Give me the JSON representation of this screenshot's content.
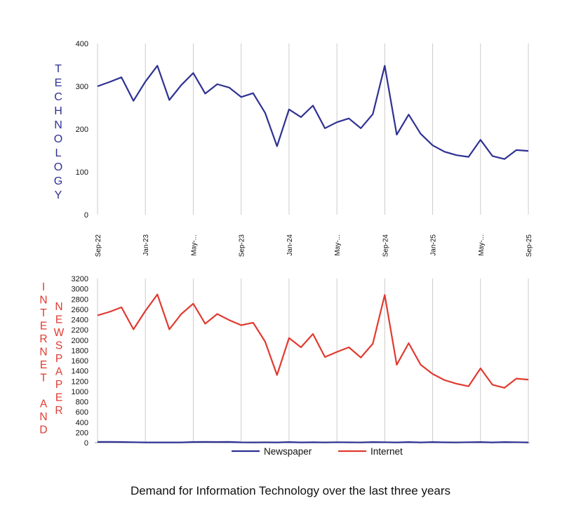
{
  "caption": "Demand for Information Technology over the last three years",
  "colors": {
    "newspaper": "#2e3192",
    "internet": "#e03a2f",
    "grid": "#cccccc",
    "axis": "#999999",
    "text": "#111111"
  },
  "chart_data": [
    {
      "type": "line",
      "title": "",
      "ylabel": "TECHNOLOGY",
      "ylim": [
        0,
        400
      ],
      "yticks": [
        0,
        100,
        200,
        300,
        400
      ],
      "xtick_labels": [
        "Sep-22",
        "Jan-23",
        "May-...",
        "Sep-23",
        "Jan-24",
        "May-...",
        "Sep-24",
        "Jan-25",
        "May-...",
        "Sep-25"
      ],
      "x": [
        "Sep-22",
        "Oct-22",
        "Nov-22",
        "Dec-22",
        "Jan-23",
        "Feb-23",
        "Mar-23",
        "Apr-23",
        "May-23",
        "Jun-23",
        "Jul-23",
        "Aug-23",
        "Sep-23",
        "Oct-23",
        "Nov-23",
        "Dec-23",
        "Jan-24",
        "Feb-24",
        "Mar-24",
        "Apr-24",
        "May-24",
        "Jun-24",
        "Jul-24",
        "Aug-24",
        "Sep-24",
        "Oct-24",
        "Nov-24",
        "Dec-24",
        "Jan-25",
        "Feb-25",
        "Mar-25",
        "Apr-25",
        "May-25",
        "Jun-25",
        "Jul-25",
        "Aug-25",
        "Sep-25"
      ],
      "series": [
        {
          "name": "Technology",
          "color": "#2e3192",
          "values": [
            300,
            310,
            321,
            266,
            311,
            348,
            268,
            303,
            331,
            283,
            305,
            297,
            275,
            284,
            238,
            160,
            246,
            228,
            255,
            202,
            216,
            225,
            202,
            235,
            348,
            187,
            234,
            189,
            162,
            147,
            139,
            135,
            175,
            137,
            130,
            151,
            149
          ]
        }
      ]
    },
    {
      "type": "line",
      "title": "",
      "ylabel": "INTERNET AND NEWSPAPER",
      "ylabel_col1": "INTERNET AND",
      "ylabel_col2": "NEWSPAPER",
      "ylim": [
        0,
        3200
      ],
      "yticks": [
        0,
        200,
        400,
        600,
        800,
        1000,
        1200,
        1400,
        1600,
        1800,
        2000,
        2200,
        2400,
        2600,
        2800,
        3000,
        3200
      ],
      "legend": {
        "position": "bottom"
      },
      "x": [
        "Sep-22",
        "Oct-22",
        "Nov-22",
        "Dec-22",
        "Jan-23",
        "Feb-23",
        "Mar-23",
        "Apr-23",
        "May-23",
        "Jun-23",
        "Jul-23",
        "Aug-23",
        "Sep-23",
        "Oct-23",
        "Nov-23",
        "Dec-23",
        "Jan-24",
        "Feb-24",
        "Mar-24",
        "Apr-24",
        "May-24",
        "Jun-24",
        "Jul-24",
        "Aug-24",
        "Sep-24",
        "Oct-24",
        "Nov-24",
        "Dec-24",
        "Jan-25",
        "Feb-25",
        "Mar-25",
        "Apr-25",
        "May-25",
        "Jun-25",
        "Jul-25",
        "Aug-25",
        "Sep-25"
      ],
      "series": [
        {
          "name": "Newspaper",
          "color": "#2e3192",
          "values": [
            15,
            16,
            14,
            9,
            6,
            5,
            5,
            6,
            14,
            15,
            14,
            15,
            7,
            6,
            7,
            6,
            12,
            6,
            8,
            5,
            10,
            7,
            6,
            12,
            10,
            6,
            12,
            6,
            12,
            7,
            5,
            10,
            12,
            6,
            12,
            10,
            6
          ]
        },
        {
          "name": "Internet",
          "color": "#e03a2f",
          "values": [
            2480,
            2550,
            2640,
            2210,
            2570,
            2890,
            2210,
            2510,
            2710,
            2320,
            2510,
            2390,
            2290,
            2340,
            1970,
            1320,
            2040,
            1860,
            2120,
            1670,
            1770,
            1860,
            1660,
            1930,
            2880,
            1520,
            1940,
            1520,
            1340,
            1220,
            1150,
            1100,
            1450,
            1130,
            1070,
            1250,
            1230
          ]
        }
      ]
    }
  ]
}
